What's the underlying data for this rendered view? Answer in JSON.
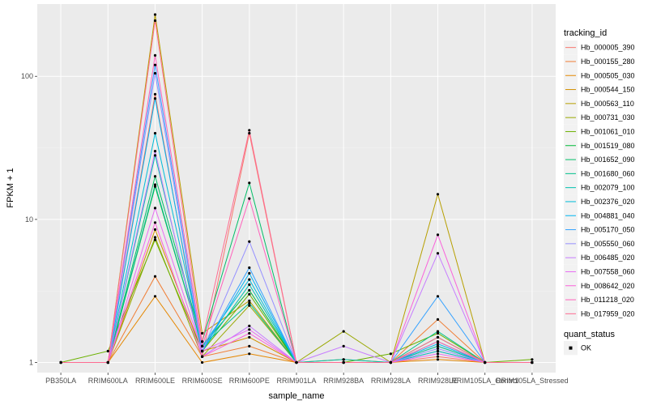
{
  "chart_data": {
    "type": "line",
    "xlabel": "sample_name",
    "ylabel": "FPKM + 1",
    "y_scale": "log10",
    "ylim": [
      0.85,
      320
    ],
    "y_ticks": [
      {
        "value": 1,
        "label": "1"
      },
      {
        "value": 10,
        "label": "10"
      },
      {
        "value": 100,
        "label": "100"
      }
    ],
    "grid": true,
    "background": "#ebebeb",
    "legend_placement": "right",
    "categories": [
      "PB350LA",
      "RRIM600LA",
      "RRIM600LE",
      "RRIM600SE",
      "RRIM600PE",
      "RRIM901LA",
      "RRIM928BA",
      "RRIM928LA",
      "RRIM928LE",
      "RRIM105LA_Control",
      "RRIM105LA_Stressed"
    ],
    "legend": {
      "title": "tracking_id",
      "status_title": "quant_status",
      "status_entries": [
        "OK"
      ]
    },
    "series": [
      {
        "name": "Hb_000005_390",
        "color": "#F8766D",
        "values": [
          1.0,
          1.0,
          75,
          1.1,
          40,
          1.0,
          1.0,
          1.0,
          1.1,
          1.0,
          1.0
        ]
      },
      {
        "name": "Hb_000155_280",
        "color": "#F07E35",
        "values": [
          1.0,
          1.0,
          4.0,
          1.1,
          1.3,
          1.0,
          1.0,
          1.0,
          2.0,
          1.0,
          1.0
        ]
      },
      {
        "name": "Hb_000505_030",
        "color": "#E58700",
        "values": [
          1.0,
          1.0,
          2.9,
          1.0,
          1.15,
          1.0,
          1.0,
          1.0,
          1.05,
          1.0,
          1.0
        ]
      },
      {
        "name": "Hb_000544_150",
        "color": "#D29000",
        "values": [
          1.0,
          1.0,
          8.5,
          1.2,
          1.5,
          1.0,
          1.05,
          1.0,
          1.2,
          1.0,
          1.0
        ]
      },
      {
        "name": "Hb_000563_110",
        "color": "#B79F00",
        "values": [
          1.0,
          1.0,
          270,
          1.6,
          2.7,
          1.0,
          1.0,
          1.0,
          15,
          1.0,
          1.0
        ]
      },
      {
        "name": "Hb_000731_030",
        "color": "#99A800",
        "values": [
          1.0,
          1.0,
          7.5,
          1.1,
          2.5,
          1.0,
          1.65,
          1.0,
          1.3,
          1.0,
          1.0
        ]
      },
      {
        "name": "Hb_001061_010",
        "color": "#6BB100",
        "values": [
          1.0,
          1.2,
          7.2,
          1.2,
          3.0,
          1.0,
          1.0,
          1.15,
          1.6,
          1.0,
          1.05
        ]
      },
      {
        "name": "Hb_001519_080",
        "color": "#00BA38",
        "values": [
          1.0,
          1.0,
          17,
          1.3,
          3.2,
          1.0,
          1.0,
          1.0,
          1.5,
          1.0,
          1.0
        ]
      },
      {
        "name": "Hb_001652_090",
        "color": "#00BE67",
        "values": [
          1.0,
          1.0,
          20,
          1.4,
          18,
          1.0,
          1.0,
          1.0,
          1.4,
          1.0,
          1.0
        ]
      },
      {
        "name": "Hb_001680_060",
        "color": "#00C08B",
        "values": [
          1.0,
          1.0,
          17.5,
          1.3,
          2.6,
          1.0,
          1.0,
          1.0,
          1.65,
          1.0,
          1.0
        ]
      },
      {
        "name": "Hb_002079_100",
        "color": "#00C0AF",
        "values": [
          1.0,
          1.0,
          28,
          1.2,
          3.5,
          1.0,
          1.05,
          1.0,
          1.3,
          1.0,
          1.0
        ]
      },
      {
        "name": "Hb_002376_020",
        "color": "#00BCD8",
        "values": [
          1.0,
          1.0,
          40,
          1.3,
          3.8,
          1.0,
          1.0,
          1.0,
          1.2,
          1.0,
          1.0
        ]
      },
      {
        "name": "Hb_004881_040",
        "color": "#00B4F0",
        "values": [
          1.0,
          1.0,
          70,
          1.2,
          4.2,
          1.0,
          1.0,
          1.0,
          1.35,
          1.0,
          1.0
        ]
      },
      {
        "name": "Hb_005170_050",
        "color": "#35A2FF",
        "values": [
          1.0,
          1.0,
          120,
          1.2,
          4.6,
          1.0,
          1.0,
          1.0,
          2.9,
          1.0,
          1.0
        ]
      },
      {
        "name": "Hb_005550_060",
        "color": "#9590FF",
        "values": [
          1.0,
          1.0,
          105,
          1.2,
          7.0,
          1.0,
          1.0,
          1.0,
          1.25,
          1.0,
          1.0
        ]
      },
      {
        "name": "Hb_006485_020",
        "color": "#C77CFF",
        "values": [
          1.0,
          1.0,
          30,
          1.1,
          1.8,
          1.0,
          1.3,
          1.0,
          5.8,
          1.0,
          1.0
        ]
      },
      {
        "name": "Hb_007558_060",
        "color": "#E76BF3",
        "values": [
          1.0,
          1.0,
          12,
          1.2,
          1.7,
          1.0,
          1.0,
          1.0,
          1.15,
          1.0,
          1.0
        ]
      },
      {
        "name": "Hb_008642_020",
        "color": "#FA62DB",
        "values": [
          1.0,
          1.0,
          9.5,
          1.1,
          1.6,
          1.0,
          1.0,
          1.0,
          7.8,
          1.0,
          1.0
        ]
      },
      {
        "name": "Hb_011218_020",
        "color": "#FF62BC",
        "values": [
          1.0,
          1.0,
          140,
          1.3,
          14,
          1.0,
          1.0,
          1.0,
          1.4,
          1.0,
          1.0
        ]
      },
      {
        "name": "Hb_017959_020",
        "color": "#FF6C91",
        "values": [
          1.0,
          1.0,
          245,
          1.4,
          42,
          1.0,
          1.0,
          1.0,
          1.5,
          1.0,
          1.0
        ]
      }
    ]
  }
}
